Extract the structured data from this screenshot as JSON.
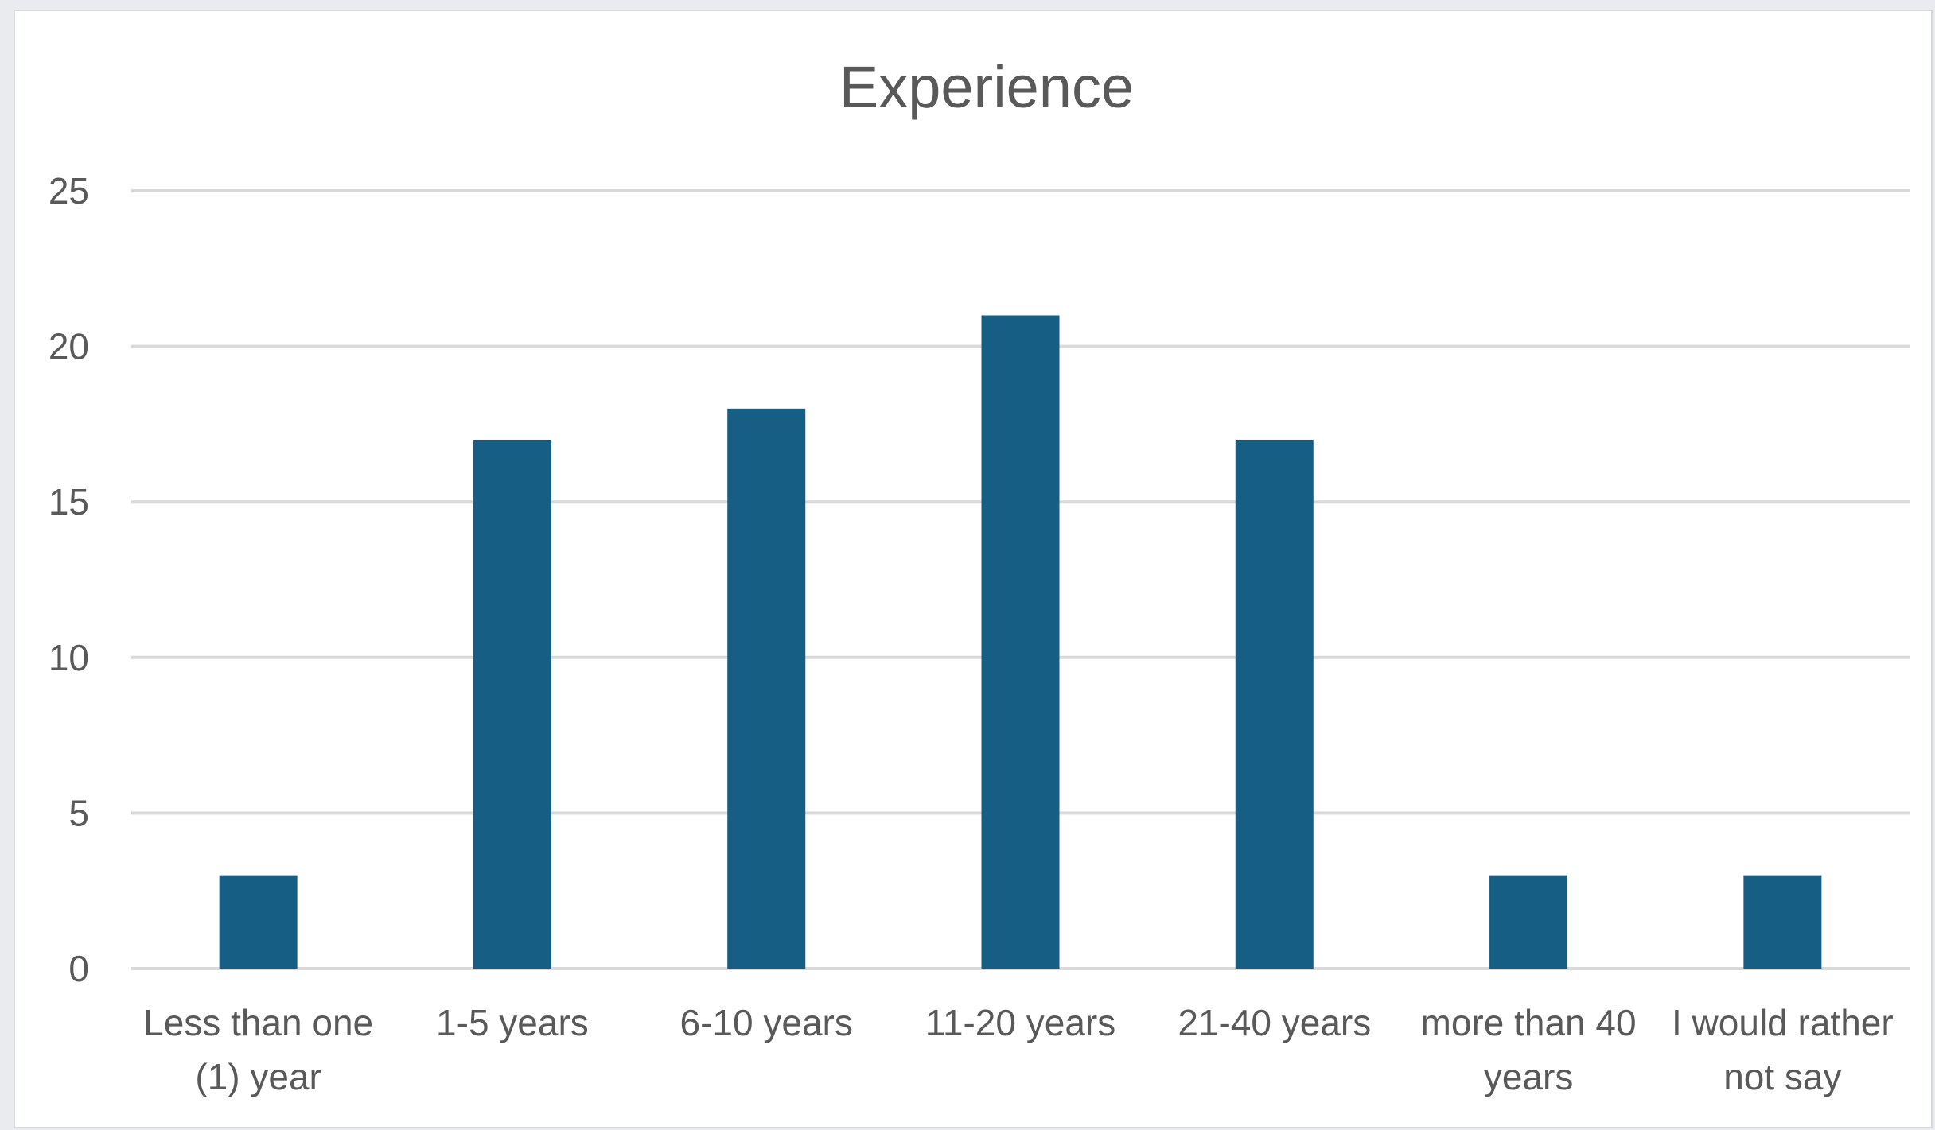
{
  "chart_data": {
    "type": "bar",
    "title": "Experience",
    "xlabel": "",
    "ylabel": "",
    "categories": [
      [
        "Less than one",
        "(1) year"
      ],
      [
        "1-5 years"
      ],
      [
        "6-10 years"
      ],
      [
        "11-20 years"
      ],
      [
        "21-40 years"
      ],
      [
        "more than 40",
        "years"
      ],
      [
        "I would rather",
        "not say"
      ]
    ],
    "values": [
      3,
      17,
      18,
      21,
      17,
      3,
      3
    ],
    "ylim": [
      0,
      25
    ],
    "yticks": [
      0,
      5,
      10,
      15,
      20,
      25
    ],
    "grid": true,
    "legend": "none",
    "bar_color": "#175e84",
    "grid_color": "#d9d9d9"
  }
}
